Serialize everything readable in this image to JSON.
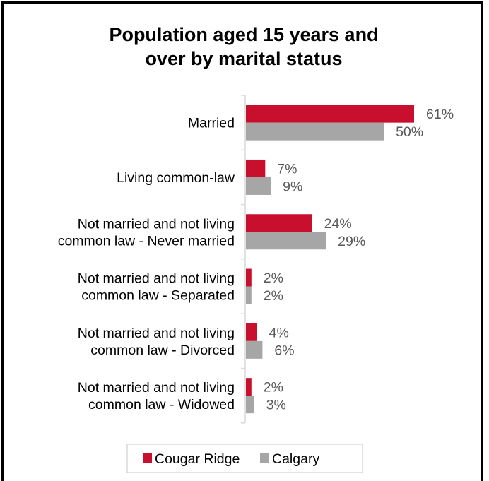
{
  "chart_data": {
    "type": "bar",
    "orientation": "horizontal",
    "title": "Population aged 15 years and over by marital status",
    "title_lines": [
      "Population aged 15 years and",
      "over by marital status"
    ],
    "categories": [
      [
        "Married"
      ],
      [
        "Living common-law"
      ],
      [
        "Not married and not living",
        "common law - Never married"
      ],
      [
        "Not married and not living",
        "common law - Separated"
      ],
      [
        "Not married and not living",
        "common law - Divorced"
      ],
      [
        "Not married and not living",
        "common law - Widowed"
      ]
    ],
    "series": [
      {
        "name": "Cougar Ridge",
        "color": "#c8102e",
        "values": [
          61,
          7,
          24,
          2,
          4,
          2
        ],
        "labels": [
          "61%",
          "7%",
          "24%",
          "2%",
          "4%",
          "2%"
        ]
      },
      {
        "name": "Calgary",
        "color": "#a6a6a6",
        "values": [
          50,
          9,
          29,
          2,
          6,
          3
        ],
        "labels": [
          "50%",
          "9%",
          "29%",
          "2%",
          "6%",
          "3%"
        ]
      }
    ],
    "unit": "%",
    "xlim": [
      0,
      61
    ],
    "grid": false,
    "legend": "bottom"
  }
}
